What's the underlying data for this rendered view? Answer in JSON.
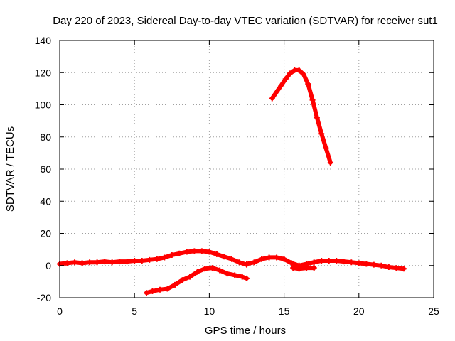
{
  "chart_data": {
    "type": "scatter",
    "title": "Day 220 of 2023, Sidereal Day-to-day VTEC variation (SDTVAR) for receiver sut1",
    "xlabel": "GPS time / hours",
    "ylabel": "SDTVAR / TECUs",
    "xlim": [
      0,
      25
    ],
    "ylim": [
      -20,
      140
    ],
    "xticks": [
      0,
      5,
      10,
      15,
      20,
      25
    ],
    "yticks": [
      -20,
      0,
      20,
      40,
      60,
      80,
      100,
      120,
      140
    ],
    "grid": true,
    "legend": "none",
    "series_color": "#ff0000",
    "series": [
      {
        "name": "track-1",
        "x": [
          0.0,
          0.5,
          1.0,
          1.5,
          2.0,
          2.5,
          3.0,
          3.5,
          4.0,
          4.5,
          5.0,
          5.5,
          6.0,
          6.5,
          7.0,
          7.5,
          8.0,
          8.5,
          9.0,
          9.5,
          10.0,
          10.5,
          11.0,
          11.5,
          12.0,
          12.5
        ],
        "y": [
          1,
          1.5,
          2,
          1.5,
          2,
          2,
          2.5,
          2,
          2.5,
          2.5,
          3,
          3,
          3.5,
          4,
          5,
          6.5,
          7.5,
          8.5,
          9,
          9,
          8.5,
          7,
          5.5,
          4,
          2,
          0.5
        ]
      },
      {
        "name": "track-2",
        "x": [
          12.5,
          13.0,
          13.5,
          14.0,
          14.5,
          15.0,
          15.5,
          16.0,
          16.5,
          17.0,
          17.5,
          18.0,
          18.5,
          19.0,
          19.5,
          20.0,
          20.5,
          21.0,
          21.5,
          22.0,
          22.5,
          23.0
        ],
        "y": [
          1,
          2,
          4,
          5,
          5,
          4,
          1.5,
          0,
          1,
          2,
          3,
          3,
          3,
          2.5,
          2,
          1.5,
          1,
          0.5,
          0,
          -1,
          -1.5,
          -2
        ]
      },
      {
        "name": "track-3",
        "x": [
          15.6,
          16.0,
          16.5,
          17.0
        ],
        "y": [
          -1.5,
          -2,
          -1.5,
          -1.5
        ]
      },
      {
        "name": "track-4",
        "x": [
          5.8,
          6.2,
          6.7,
          7.2,
          7.7,
          8.2,
          8.7,
          9.2,
          9.7,
          10.2,
          10.7,
          11.2,
          11.7,
          12.2,
          12.5
        ],
        "y": [
          -17,
          -16,
          -15,
          -14.5,
          -12,
          -9,
          -7,
          -4,
          -2,
          -1.5,
          -3,
          -5,
          -6,
          -7,
          -8
        ]
      },
      {
        "name": "track-5",
        "x": [
          14.2,
          14.5,
          14.8,
          15.1,
          15.4,
          15.7,
          16.0,
          16.3,
          16.6,
          16.9,
          17.2,
          17.5,
          17.8,
          18.1
        ],
        "y": [
          104,
          108,
          112,
          116,
          119.5,
          121.5,
          121.5,
          119,
          113,
          103,
          92,
          82,
          73,
          64
        ]
      }
    ]
  }
}
